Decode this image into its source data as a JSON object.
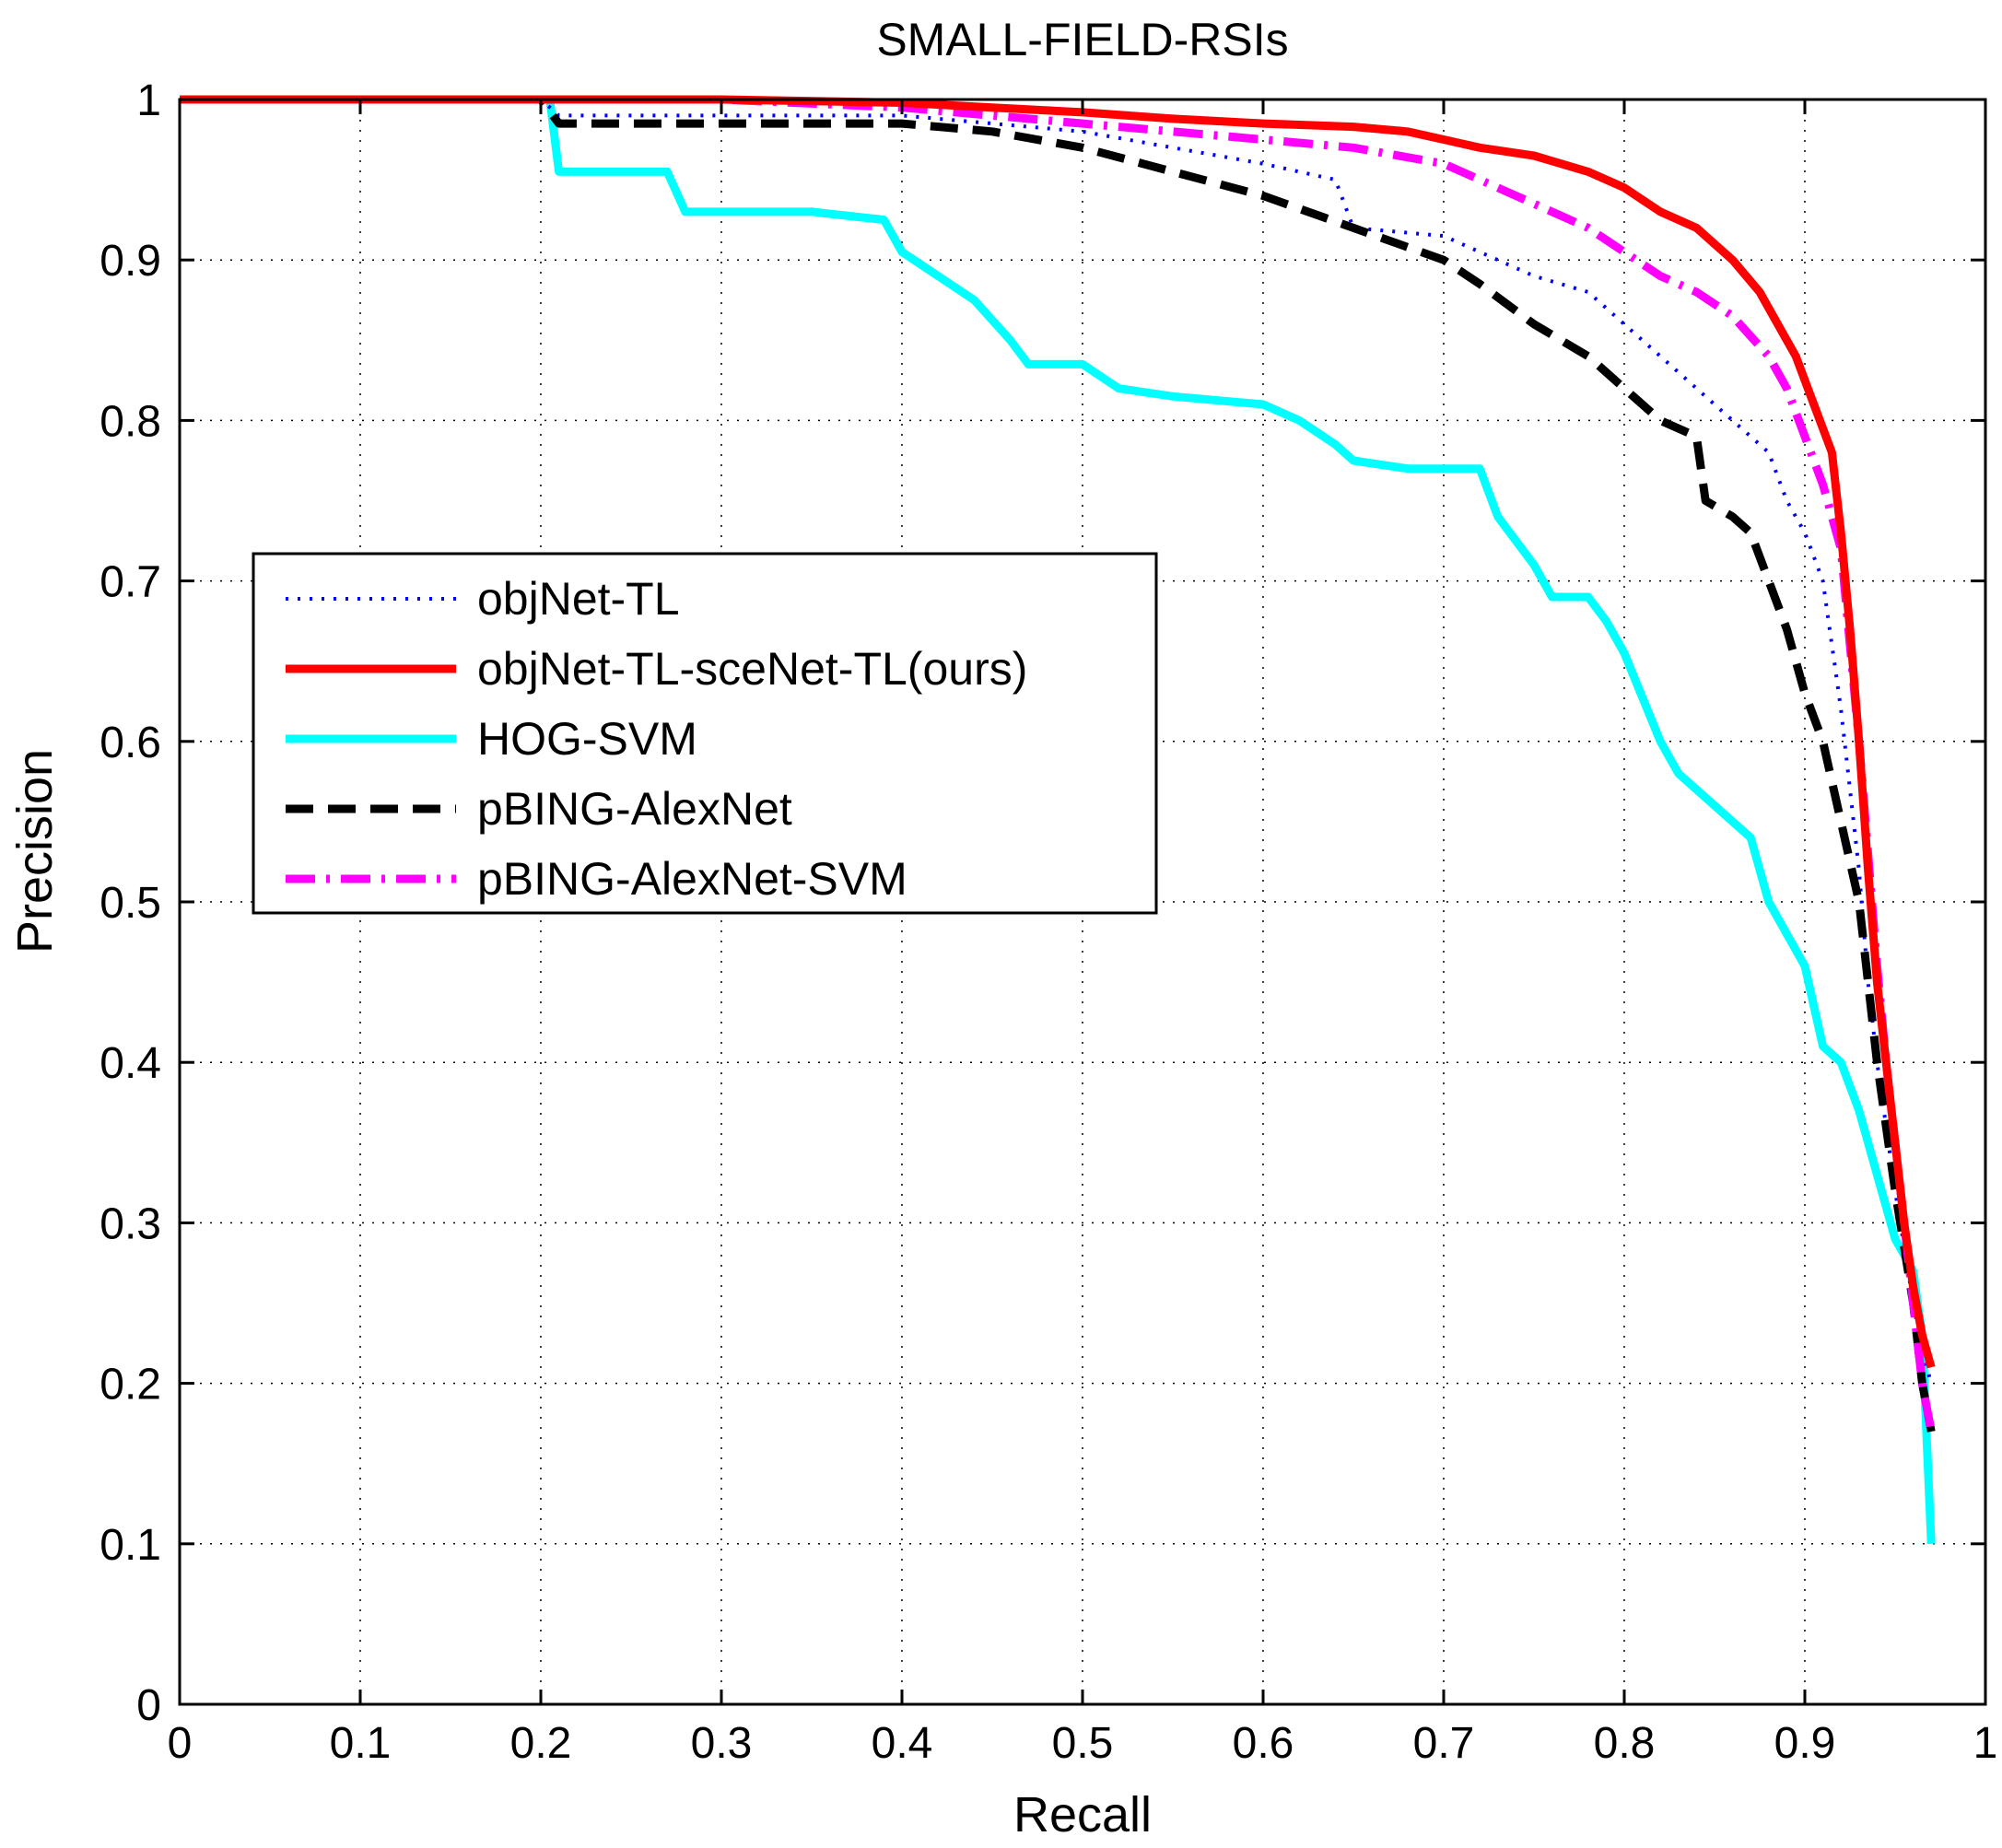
{
  "chart_data": {
    "type": "line",
    "title": "SMALL-FIELD-RSIs",
    "xlabel": "Recall",
    "ylabel": "Precision",
    "xlim": [
      0,
      1
    ],
    "ylim": [
      0,
      1
    ],
    "grid": true,
    "legend_position": "middle-left",
    "x_ticks": [
      0,
      0.1,
      0.2,
      0.3,
      0.4,
      0.5,
      0.6,
      0.7,
      0.8,
      0.9,
      1
    ],
    "x_tick_labels": [
      "0",
      "0.1",
      "0.2",
      "0.3",
      "0.4",
      "0.5",
      "0.6",
      "0.7",
      "0.8",
      "0.9",
      "1"
    ],
    "y_ticks": [
      0,
      0.1,
      0.2,
      0.3,
      0.4,
      0.5,
      0.6,
      0.7,
      0.8,
      0.9,
      1
    ],
    "y_tick_labels": [
      "0",
      "0.1",
      "0.2",
      "0.3",
      "0.4",
      "0.5",
      "0.6",
      "0.7",
      "0.8",
      "0.9",
      "1"
    ],
    "series": [
      {
        "name": "objNet-TL",
        "color": "#0000ff",
        "style": "dotted",
        "x": [
          0,
          0.2,
          0.21,
          0.25,
          0.3,
          0.35,
          0.4,
          0.45,
          0.5,
          0.55,
          0.6,
          0.64,
          0.65,
          0.7,
          0.75,
          0.78,
          0.8,
          0.82,
          0.84,
          0.86,
          0.88,
          0.89,
          0.9,
          0.91,
          0.92,
          0.93,
          0.935,
          0.94,
          0.95,
          0.96,
          0.965,
          0.97
        ],
        "y": [
          1,
          1,
          0.99,
          0.99,
          0.99,
          0.99,
          0.99,
          0.985,
          0.98,
          0.97,
          0.96,
          0.95,
          0.92,
          0.915,
          0.89,
          0.88,
          0.86,
          0.84,
          0.82,
          0.8,
          0.78,
          0.75,
          0.73,
          0.7,
          0.62,
          0.52,
          0.45,
          0.4,
          0.32,
          0.25,
          0.22,
          0.2
        ]
      },
      {
        "name": "objNet-TL-sceNet-TL(ours)",
        "color": "#ff0000",
        "style": "solid",
        "x": [
          0,
          0.2,
          0.3,
          0.4,
          0.45,
          0.5,
          0.55,
          0.6,
          0.65,
          0.68,
          0.7,
          0.72,
          0.75,
          0.78,
          0.8,
          0.82,
          0.84,
          0.86,
          0.875,
          0.885,
          0.895,
          0.905,
          0.915,
          0.92,
          0.925,
          0.93,
          0.935,
          0.94,
          0.945,
          0.95,
          0.955,
          0.96,
          0.965,
          0.97
        ],
        "y": [
          1,
          1,
          1,
          0.998,
          0.995,
          0.992,
          0.988,
          0.985,
          0.983,
          0.98,
          0.975,
          0.97,
          0.965,
          0.955,
          0.945,
          0.93,
          0.92,
          0.9,
          0.88,
          0.86,
          0.84,
          0.81,
          0.78,
          0.73,
          0.67,
          0.6,
          0.52,
          0.45,
          0.4,
          0.35,
          0.3,
          0.26,
          0.23,
          0.21
        ]
      },
      {
        "name": "HOG-SVM",
        "color": "#00ffff",
        "style": "solid",
        "x": [
          0,
          0.2,
          0.205,
          0.21,
          0.27,
          0.28,
          0.35,
          0.39,
          0.4,
          0.42,
          0.44,
          0.46,
          0.47,
          0.5,
          0.52,
          0.55,
          0.6,
          0.62,
          0.64,
          0.65,
          0.68,
          0.72,
          0.73,
          0.75,
          0.76,
          0.78,
          0.79,
          0.8,
          0.82,
          0.83,
          0.85,
          0.87,
          0.88,
          0.89,
          0.9,
          0.91,
          0.92,
          0.93,
          0.94,
          0.95,
          0.96,
          0.965,
          0.97
        ],
        "y": [
          1,
          1,
          1,
          0.955,
          0.955,
          0.93,
          0.93,
          0.925,
          0.905,
          0.89,
          0.875,
          0.85,
          0.835,
          0.835,
          0.82,
          0.815,
          0.81,
          0.8,
          0.785,
          0.775,
          0.77,
          0.77,
          0.74,
          0.71,
          0.69,
          0.69,
          0.675,
          0.655,
          0.6,
          0.58,
          0.56,
          0.54,
          0.5,
          0.48,
          0.46,
          0.41,
          0.4,
          0.37,
          0.33,
          0.29,
          0.27,
          0.23,
          0.1
        ]
      },
      {
        "name": "pBING-AlexNet",
        "color": "#000000",
        "style": "dashed",
        "x": [
          0,
          0.2,
          0.21,
          0.3,
          0.4,
          0.45,
          0.5,
          0.55,
          0.6,
          0.65,
          0.7,
          0.72,
          0.75,
          0.78,
          0.8,
          0.82,
          0.84,
          0.845,
          0.86,
          0.87,
          0.88,
          0.89,
          0.9,
          0.91,
          0.92,
          0.93,
          0.935,
          0.94,
          0.945,
          0.95,
          0.96,
          0.965,
          0.97
        ],
        "y": [
          1,
          1,
          0.985,
          0.985,
          0.985,
          0.98,
          0.97,
          0.955,
          0.94,
          0.92,
          0.9,
          0.885,
          0.86,
          0.84,
          0.82,
          0.8,
          0.79,
          0.75,
          0.74,
          0.73,
          0.7,
          0.67,
          0.63,
          0.6,
          0.55,
          0.5,
          0.45,
          0.4,
          0.36,
          0.32,
          0.25,
          0.2,
          0.17
        ]
      },
      {
        "name": "pBING-AlexNet-SVM",
        "color": "#ff00ff",
        "style": "dashdot",
        "x": [
          0,
          0.2,
          0.3,
          0.4,
          0.45,
          0.5,
          0.55,
          0.6,
          0.65,
          0.7,
          0.72,
          0.75,
          0.78,
          0.8,
          0.82,
          0.84,
          0.86,
          0.88,
          0.89,
          0.9,
          0.91,
          0.92,
          0.925,
          0.93,
          0.935,
          0.94,
          0.945,
          0.95,
          0.955,
          0.96,
          0.965,
          0.97
        ],
        "y": [
          1,
          1,
          1,
          0.995,
          0.99,
          0.985,
          0.98,
          0.975,
          0.97,
          0.96,
          0.95,
          0.935,
          0.92,
          0.905,
          0.89,
          0.88,
          0.865,
          0.84,
          0.82,
          0.79,
          0.76,
          0.72,
          0.66,
          0.6,
          0.53,
          0.46,
          0.4,
          0.35,
          0.3,
          0.25,
          0.2,
          0.17
        ]
      }
    ]
  }
}
